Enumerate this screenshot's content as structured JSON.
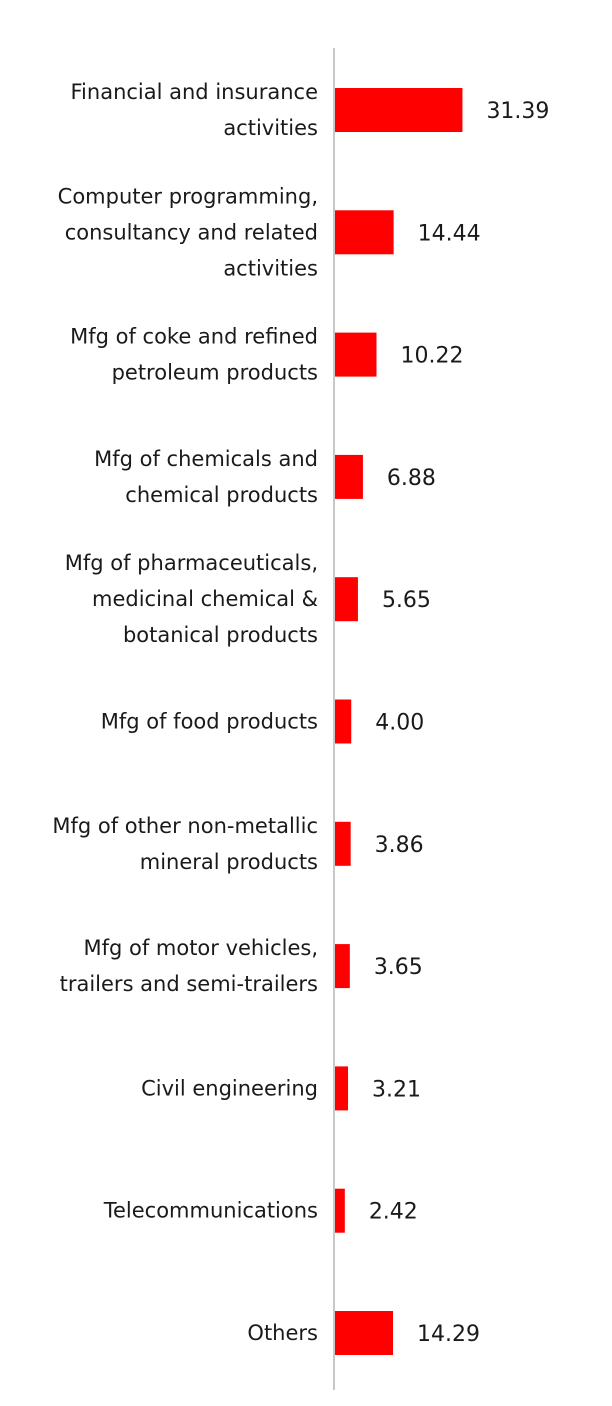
{
  "chart_data": {
    "type": "bar",
    "orientation": "horizontal",
    "categories": [
      [
        "Financial and insurance",
        "activities"
      ],
      [
        "Computer programming,",
        "consultancy and related",
        "activities"
      ],
      [
        "Mfg of coke and refined",
        "petroleum products"
      ],
      [
        "Mfg of chemicals and",
        "chemical products"
      ],
      [
        "Mfg of pharmaceuticals,",
        "medicinal chemical &",
        "botanical products"
      ],
      [
        "Mfg of food products"
      ],
      [
        "Mfg of other non-metallic",
        "mineral products"
      ],
      [
        "Mfg of motor vehicles,",
        "trailers and semi-trailers"
      ],
      [
        "Civil engineering"
      ],
      [
        "Telecommunications"
      ],
      [
        "Others"
      ]
    ],
    "values": [
      31.39,
      14.44,
      10.22,
      6.88,
      5.65,
      4.0,
      3.86,
      3.65,
      3.21,
      2.42,
      14.29
    ],
    "value_labels": [
      "31.39",
      "14.44",
      "10.22",
      "6.88",
      "5.65",
      "4.00",
      "3.86",
      "3.65",
      "3.21",
      "2.42",
      "14.29"
    ],
    "bar_color": "#ff0000",
    "axis_color": "#c8c8c8",
    "title": "",
    "xlabel": "",
    "ylabel": "",
    "xlim": [
      0,
      35
    ],
    "grid": false,
    "legend": "none"
  }
}
